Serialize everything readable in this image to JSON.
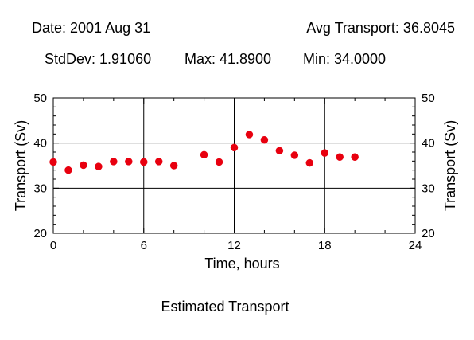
{
  "header": {
    "date": "Date: 2001 Aug 31",
    "avg": "Avg Transport: 36.8045",
    "stddev": "StdDev: 1.91060",
    "max": "Max: 41.8900",
    "min": "Min: 34.0000"
  },
  "footer": {
    "caption": "Estimated Transport"
  },
  "colors": {
    "marker": "#e8000f",
    "axis": "#000000",
    "grid": "#000000"
  },
  "chart_data": {
    "type": "scatter",
    "title": "",
    "xlabel": "Time, hours",
    "ylabel": "Transport (Sv)",
    "ylabel_right": "Transport (Sv)",
    "xlim": [
      0,
      24
    ],
    "ylim": [
      20,
      50
    ],
    "x_ticks": [
      0,
      6,
      12,
      18,
      24
    ],
    "y_ticks": [
      20,
      30,
      40,
      50
    ],
    "grid": true,
    "series": [
      {
        "x": [
          0,
          1,
          2,
          3,
          4,
          5,
          6,
          7,
          8,
          10,
          11,
          12,
          13,
          14,
          15,
          16,
          17,
          18,
          19,
          20
        ],
        "y": [
          35.8,
          34.0,
          35.1,
          34.8,
          35.9,
          35.9,
          35.8,
          35.9,
          35.0,
          37.4,
          35.8,
          39.0,
          41.89,
          40.7,
          38.3,
          37.3,
          35.6,
          37.8,
          36.9,
          36.9
        ]
      }
    ]
  }
}
